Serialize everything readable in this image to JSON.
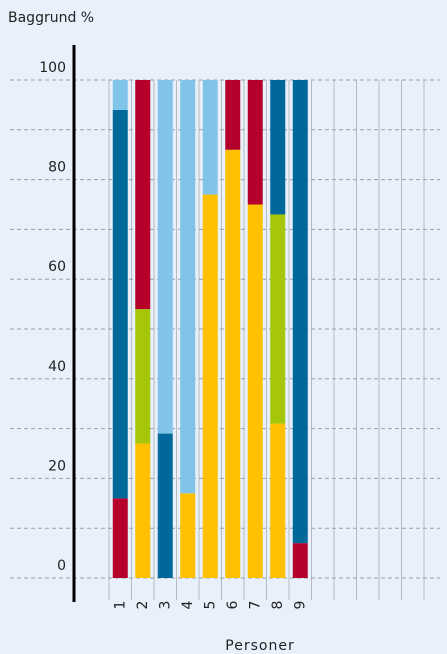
{
  "chart_data": {
    "type": "stacked_bar",
    "y_label": "Baggrund %",
    "x_label": "Personer",
    "categories": [
      "1",
      "2",
      "3",
      "4",
      "5",
      "6",
      "7",
      "8",
      "9"
    ],
    "stacks": [
      [
        {
          "value": 16,
          "color": "#b5002b"
        },
        {
          "value": 78,
          "color": "#00699a"
        },
        {
          "value": 6,
          "color": "#80c4ea"
        }
      ],
      [
        {
          "value": 27,
          "color": "#ffc000"
        },
        {
          "value": 27,
          "color": "#a6c60a"
        },
        {
          "value": 46,
          "color": "#b5002b"
        }
      ],
      [
        {
          "value": 29,
          "color": "#00699a"
        },
        {
          "value": 71,
          "color": "#80c4ea"
        }
      ],
      [
        {
          "value": 17,
          "color": "#ffc000"
        },
        {
          "value": 83,
          "color": "#80c4ea"
        }
      ],
      [
        {
          "value": 77,
          "color": "#ffc000"
        },
        {
          "value": 23,
          "color": "#80c4ea"
        }
      ],
      [
        {
          "value": 86,
          "color": "#ffc000"
        },
        {
          "value": 14,
          "color": "#b5002b"
        }
      ],
      [
        {
          "value": 75,
          "color": "#ffc000"
        },
        {
          "value": 25,
          "color": "#b5002b"
        }
      ],
      [
        {
          "value": 31,
          "color": "#ffc000"
        },
        {
          "value": 42,
          "color": "#a6c60a"
        },
        {
          "value": 27,
          "color": "#00699a"
        }
      ],
      [
        {
          "value": 7,
          "color": "#b5002b"
        },
        {
          "value": 93,
          "color": "#00699a"
        }
      ]
    ],
    "ylim": [
      0,
      100
    ],
    "yticks": [
      0,
      20,
      40,
      60,
      80,
      100
    ],
    "minor_yticks": [
      10,
      30,
      50,
      70,
      90
    ],
    "grid": true
  }
}
